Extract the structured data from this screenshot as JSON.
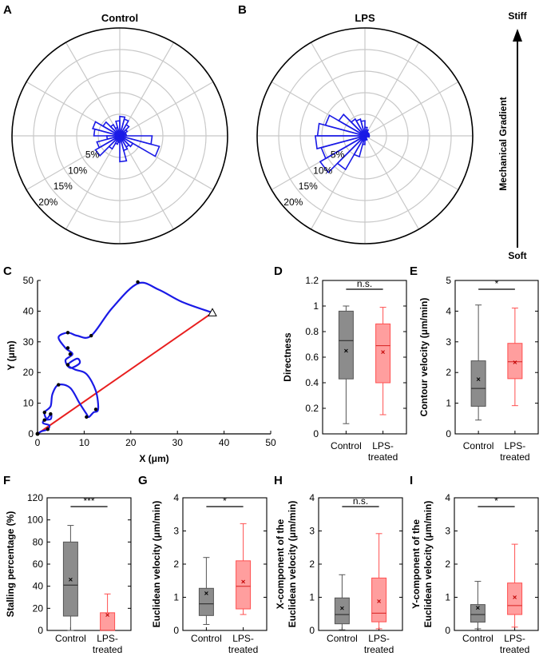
{
  "colors": {
    "control_fill": "#8c8c8c",
    "control_stroke": "#555555",
    "lps_fill": "#ff9e9e",
    "lps_stroke": "#ff5050",
    "rose": "#1a1ae6",
    "path": "#1a1ae6",
    "net": "#e81e1e",
    "grid": "#c8c8c8"
  },
  "gradient": {
    "top": "Stiff",
    "bottom": "Soft",
    "label": "Mechanical Gradient"
  },
  "chart_data": [
    {
      "id": "A",
      "type": "polar-histogram",
      "title": "Control",
      "radial_ticks": [
        "5%",
        "10%",
        "15%",
        "20%"
      ],
      "r_max": 25,
      "bin_count": 24,
      "values": [
        1.5,
        1.5,
        2,
        3,
        4,
        4.5,
        3.5,
        2,
        3,
        4.5,
        6.5,
        6,
        3,
        5.5,
        6.5,
        3.5,
        2,
        1.5,
        6,
        3.5,
        3,
        3.5,
        9.5,
        7.5
      ]
    },
    {
      "id": "B",
      "type": "polar-histogram",
      "title": "LPS",
      "radial_ticks": [
        "5%",
        "10%",
        "15%",
        "20%"
      ],
      "r_max": 25,
      "bin_count": 24,
      "values": [
        1,
        1,
        1,
        1,
        1.5,
        2,
        3.5,
        4,
        4.5,
        7,
        9.5,
        11,
        11.5,
        10.5,
        12,
        9,
        5,
        2,
        1,
        1,
        0.5,
        0.5,
        0.5,
        1
      ]
    },
    {
      "id": "C",
      "type": "line",
      "xlabel": "X (μm)",
      "ylabel": "Y (μm)",
      "xlim": [
        0,
        50
      ],
      "ylim": [
        0,
        50
      ],
      "x_ticks": [
        "0",
        "10",
        "20",
        "30",
        "40",
        "50"
      ],
      "y_ticks": [
        "0",
        "10",
        "20",
        "30",
        "40",
        "50"
      ],
      "path": [
        [
          0,
          0
        ],
        [
          0.8,
          0.8
        ],
        [
          2.2,
          1.5
        ],
        [
          2.5,
          2.8
        ],
        [
          1.2,
          3.5
        ],
        [
          1.5,
          4.5
        ],
        [
          2.8,
          4.8
        ],
        [
          2.9,
          6.5
        ],
        [
          2.0,
          5.0
        ],
        [
          1.5,
          7.0
        ],
        [
          2.8,
          9.0
        ],
        [
          3.2,
          13.0
        ],
        [
          4.5,
          16.0
        ],
        [
          7.0,
          15.0
        ],
        [
          9.0,
          10.0
        ],
        [
          10.5,
          6.5
        ],
        [
          11.0,
          5.5
        ],
        [
          12.0,
          7.0
        ],
        [
          13.0,
          8.0
        ],
        [
          12.5,
          14.0
        ],
        [
          10.5,
          19.5
        ],
        [
          8.0,
          21.0
        ],
        [
          6.5,
          22.5
        ],
        [
          8.5,
          24.5
        ],
        [
          9.0,
          23.0
        ],
        [
          7.0,
          21.5
        ],
        [
          6.0,
          24.0
        ],
        [
          7.5,
          26.0
        ],
        [
          6.0,
          28.0
        ],
        [
          4.5,
          31.5
        ],
        [
          6.5,
          33.0
        ],
        [
          8.5,
          32.0
        ],
        [
          11.5,
          32.0
        ],
        [
          16.0,
          41.0
        ],
        [
          21.5,
          49.0
        ],
        [
          26.0,
          47.0
        ],
        [
          31.0,
          43.0
        ],
        [
          37.5,
          39.5
        ]
      ],
      "markers": [
        [
          2.2,
          1.5
        ],
        [
          1.5,
          4.5
        ],
        [
          2.8,
          6.5
        ],
        [
          1.5,
          7.0
        ],
        [
          4.5,
          16.0
        ],
        [
          10.5,
          5.5
        ],
        [
          12.5,
          8.0
        ],
        [
          6.5,
          22.5
        ],
        [
          7.0,
          26.0
        ],
        [
          6.5,
          28.0
        ],
        [
          6.5,
          33.0
        ],
        [
          11.5,
          32.0
        ],
        [
          21.5,
          49.5
        ]
      ],
      "net_start": [
        0,
        0
      ],
      "net_end": [
        37.5,
        39.5
      ]
    },
    {
      "id": "D",
      "type": "box",
      "ylabel": "Directness",
      "ylim": [
        0,
        1.2
      ],
      "y_ticks": [
        "0",
        "0.2",
        "0.4",
        "0.6",
        "0.8",
        "1",
        "1.2"
      ],
      "categories": [
        "Control",
        "LPS-treated"
      ],
      "sig": "n.s.",
      "boxes": [
        {
          "whisker_low": 0.08,
          "q1": 0.43,
          "median": 0.73,
          "q3": 0.96,
          "whisker_high": 1.0,
          "mean": 0.65
        },
        {
          "whisker_low": 0.15,
          "q1": 0.4,
          "median": 0.69,
          "q3": 0.86,
          "whisker_high": 0.99,
          "mean": 0.64
        }
      ]
    },
    {
      "id": "E",
      "type": "box",
      "ylabel": "Contour velocity (μm/min)",
      "ylim": [
        0,
        5
      ],
      "y_ticks": [
        "0",
        "1",
        "2",
        "3",
        "4",
        "5"
      ],
      "categories": [
        "Control",
        "LPS-treated"
      ],
      "sig": "*",
      "boxes": [
        {
          "whisker_low": 0.45,
          "q1": 0.9,
          "median": 1.48,
          "q3": 2.38,
          "whisker_high": 4.2,
          "mean": 1.78
        },
        {
          "whisker_low": 0.92,
          "q1": 1.8,
          "median": 2.35,
          "q3": 2.95,
          "whisker_high": 4.1,
          "mean": 2.33
        }
      ]
    },
    {
      "id": "F",
      "type": "box",
      "ylabel": "Stalling percentage (%)",
      "ylim": [
        0,
        120
      ],
      "y_ticks": [
        "0",
        "20",
        "40",
        "60",
        "80",
        "100",
        "120"
      ],
      "categories": [
        "Control",
        "LPS-treated"
      ],
      "sig": "***",
      "boxes": [
        {
          "whisker_low": 0,
          "q1": 13,
          "median": 41,
          "q3": 80,
          "whisker_high": 95,
          "mean": 46
        },
        {
          "whisker_low": 0,
          "q1": 0,
          "median": 0,
          "q3": 16,
          "whisker_high": 33,
          "mean": 14
        }
      ]
    },
    {
      "id": "G",
      "type": "box",
      "ylabel": "Euclidean velocity (μm/min)",
      "ylim": [
        0,
        4
      ],
      "y_ticks": [
        "0",
        "1",
        "2",
        "3",
        "4"
      ],
      "categories": [
        "Control",
        "LPS-treated"
      ],
      "sig": "*",
      "boxes": [
        {
          "whisker_low": 0.18,
          "q1": 0.45,
          "median": 0.8,
          "q3": 1.27,
          "whisker_high": 2.2,
          "mean": 1.12
        },
        {
          "whisker_low": 0.48,
          "q1": 0.65,
          "median": 1.33,
          "q3": 2.1,
          "whisker_high": 3.22,
          "mean": 1.47
        }
      ]
    },
    {
      "id": "H",
      "type": "box",
      "ylabel": "X-component of the Euclidean velocity (μm/min)",
      "ylim": [
        0,
        4
      ],
      "y_ticks": [
        "0",
        "1",
        "2",
        "3",
        "4"
      ],
      "categories": [
        "Control",
        "LPS-treated"
      ],
      "sig": "n.s.",
      "boxes": [
        {
          "whisker_low": 0.02,
          "q1": 0.2,
          "median": 0.48,
          "q3": 0.98,
          "whisker_high": 1.68,
          "mean": 0.67
        },
        {
          "whisker_low": 0.05,
          "q1": 0.26,
          "median": 0.52,
          "q3": 1.58,
          "whisker_high": 2.92,
          "mean": 0.88
        }
      ]
    },
    {
      "id": "I",
      "type": "box",
      "ylabel": "Y-component of the Euclidean velocity (μm/min)",
      "ylim": [
        0,
        4
      ],
      "y_ticks": [
        "0",
        "1",
        "2",
        "3",
        "4"
      ],
      "categories": [
        "Control",
        "LPS-treated"
      ],
      "sig": "*",
      "boxes": [
        {
          "whisker_low": 0.05,
          "q1": 0.25,
          "median": 0.48,
          "q3": 0.78,
          "whisker_high": 1.48,
          "mean": 0.68
        },
        {
          "whisker_low": 0.1,
          "q1": 0.48,
          "median": 0.75,
          "q3": 1.43,
          "whisker_high": 2.6,
          "mean": 1.0
        }
      ]
    }
  ]
}
